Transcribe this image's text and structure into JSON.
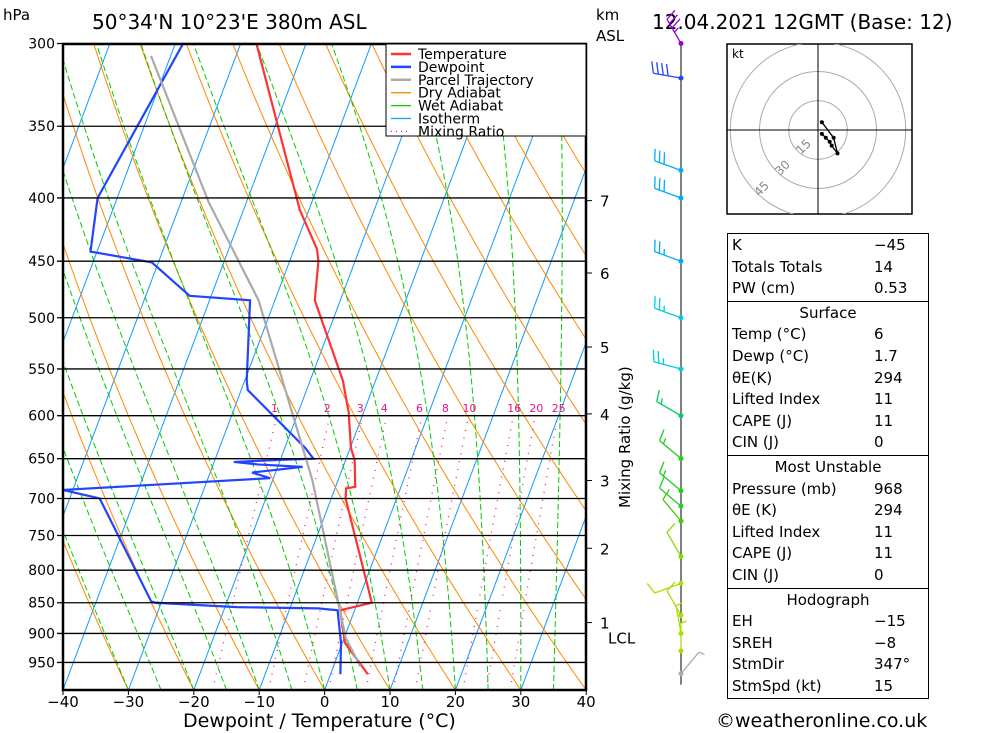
{
  "header": {
    "unit_left": "hPa",
    "location": "50°34'N 10°23'E 380m ASL",
    "km_label": "km",
    "asl_label": "ASL",
    "date": "12.04.2021 12GMT (Base: 12)"
  },
  "chart_data": {
    "type": "line",
    "title": "Skew-T log-P sounding 50°34'N 10°23'E 380m ASL",
    "xlabel": "Dewpoint / Temperature (°C)",
    "ylabel": "hPa",
    "xlim": [
      -40,
      40
    ],
    "ylim": [
      1000,
      300
    ],
    "x_ticks": [
      -40,
      -30,
      -20,
      -10,
      0,
      10,
      20,
      30,
      40
    ],
    "pressure_ticks": [
      300,
      350,
      400,
      450,
      500,
      550,
      600,
      650,
      700,
      750,
      800,
      850,
      900,
      950
    ],
    "km_ticks": [
      {
        "km": "7",
        "p": 402
      },
      {
        "km": "6",
        "p": 460
      },
      {
        "km": "5",
        "p": 528
      },
      {
        "km": "4",
        "p": 598
      },
      {
        "km": "3",
        "p": 677
      },
      {
        "km": "2",
        "p": 768
      },
      {
        "km": "1",
        "p": 882
      }
    ],
    "lcl_label": "LCL",
    "lcl_p": 907,
    "mixing_ratio_label": "Mixing Ratio (g/kg)",
    "mixing_ratios": [
      "1",
      "2",
      "3",
      "4",
      "6",
      "8",
      "10",
      "16",
      "20",
      "25"
    ],
    "legend": [
      {
        "name": "Temperature",
        "color": "#ff3333"
      },
      {
        "name": "Dewpoint",
        "color": "#2244ff"
      },
      {
        "name": "Parcel Trajectory",
        "color": "#aaaaaa"
      },
      {
        "name": "Dry Adiabat",
        "color": "#ff8800"
      },
      {
        "name": "Wet Adiabat",
        "color": "#00cc00"
      },
      {
        "name": "Isotherm",
        "color": "#1199ff"
      },
      {
        "name": "Mixing Ratio",
        "color": "#ee1188"
      }
    ],
    "series": [
      {
        "name": "Temperature",
        "p": [
          971,
          916,
          862,
          850,
          700,
          687,
          685,
          652,
          637,
          596,
          562,
          484,
          450,
          440,
          409,
          300
        ],
        "t": [
          5.7,
          0.4,
          -2.2,
          2.2,
          -7.8,
          -8.3,
          -7,
          -8.6,
          -9.9,
          -12.3,
          -15,
          -23.9,
          -25.6,
          -26.5,
          -31.4,
          -47.6
        ]
      },
      {
        "name": "Dewpoint",
        "p": [
          971,
          916,
          862,
          859,
          857,
          850,
          848,
          700,
          689,
          674,
          667,
          660,
          657,
          654,
          651,
          650,
          637,
          572,
          562,
          484,
          480,
          451,
          442,
          400,
          300
        ],
        "t": [
          1.5,
          -0.2,
          -2.6,
          -5.7,
          -18.2,
          -30.9,
          -31.6,
          -45.4,
          -51.5,
          -20.5,
          -23.6,
          -16.2,
          -23.2,
          -27,
          -18.6,
          -15,
          -16.9,
          -29,
          -29.7,
          -33.8,
          -43.3,
          -51,
          -61,
          -63,
          -58.8
        ]
      },
      {
        "name": "Parcel Trajectory",
        "p": [
          957,
          907,
          677,
          484,
          403,
          307
        ],
        "t": [
          4.1,
          0.2,
          -13.9,
          -32.5,
          -45.8,
          -63
        ]
      }
    ],
    "winds": [
      {
        "p": 300,
        "dir": 330,
        "spd": 35,
        "color": "#9900cc"
      },
      {
        "p": 320,
        "dir": 280,
        "spd": 40,
        "color": "#2244ff"
      },
      {
        "p": 380,
        "dir": 290,
        "spd": 30,
        "color": "#00aaff"
      },
      {
        "p": 400,
        "dir": 290,
        "spd": 30,
        "color": "#00aaff"
      },
      {
        "p": 450,
        "dir": 290,
        "spd": 25,
        "color": "#00aaff"
      },
      {
        "p": 500,
        "dir": 290,
        "spd": 25,
        "color": "#00ccdd"
      },
      {
        "p": 550,
        "dir": 285,
        "spd": 25,
        "color": "#00ccdd"
      },
      {
        "p": 600,
        "dir": 300,
        "spd": 15,
        "color": "#00cc66"
      },
      {
        "p": 650,
        "dir": 310,
        "spd": 15,
        "color": "#22cc22"
      },
      {
        "p": 690,
        "dir": 310,
        "spd": 15,
        "color": "#22cc22"
      },
      {
        "p": 710,
        "dir": 310,
        "spd": 10,
        "color": "#22cc22"
      },
      {
        "p": 730,
        "dir": 320,
        "spd": 10,
        "color": "#44cc00"
      },
      {
        "p": 780,
        "dir": 330,
        "spd": 10,
        "color": "#88dd00"
      },
      {
        "p": 820,
        "dir": 250,
        "spd": 10,
        "color": "#aadd00"
      },
      {
        "p": 870,
        "dir": 330,
        "spd": 10,
        "color": "#aadd00"
      },
      {
        "p": 900,
        "dir": 350,
        "spd": 5,
        "color": "#aadd00"
      },
      {
        "p": 930,
        "dir": 360,
        "spd": 5,
        "color": "#aadd00"
      },
      {
        "p": 970,
        "dir": 40,
        "spd": 5,
        "color": "#aaaaaa"
      }
    ],
    "hodograph": {
      "unit": "kt",
      "rings": [
        "15",
        "30",
        "45"
      ],
      "u": [
        2,
        4,
        6,
        7,
        10,
        8,
        2
      ],
      "v": [
        -2,
        -4,
        -6,
        -8,
        -12,
        -4,
        4
      ]
    }
  },
  "indices": {
    "top": [
      {
        "k": "K",
        "v": "−45"
      },
      {
        "k": "Totals Totals",
        "v": "14"
      },
      {
        "k": "PW (cm)",
        "v": "0.53"
      }
    ],
    "surface": {
      "title": "Surface",
      "rows": [
        {
          "k": "Temp (°C)",
          "v": "6"
        },
        {
          "k": "Dewp (°C)",
          "v": "1.7"
        },
        {
          "k": "θE(K)",
          "v": "294"
        },
        {
          "k": "Lifted Index",
          "v": "11"
        },
        {
          "k": "CAPE (J)",
          "v": "11"
        },
        {
          "k": "CIN (J)",
          "v": "0"
        }
      ]
    },
    "most_unstable": {
      "title": "Most Unstable",
      "rows": [
        {
          "k": "Pressure (mb)",
          "v": "968"
        },
        {
          "k": "θE (K)",
          "v": "294"
        },
        {
          "k": "Lifted Index",
          "v": "11"
        },
        {
          "k": "CAPE (J)",
          "v": "11"
        },
        {
          "k": "CIN (J)",
          "v": "0"
        }
      ]
    },
    "hodograph": {
      "title": "Hodograph",
      "rows": [
        {
          "k": "EH",
          "v": "−15"
        },
        {
          "k": "SREH",
          "v": "−8"
        },
        {
          "k": "StmDir",
          "v": "347°"
        },
        {
          "k": "StmSpd (kt)",
          "v": "15"
        }
      ]
    }
  },
  "footer": {
    "copyright": "©weatheronline.co.uk"
  }
}
